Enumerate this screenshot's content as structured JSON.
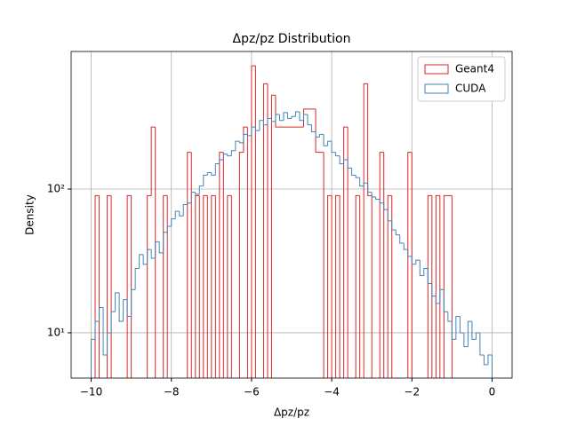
{
  "chart_data": {
    "type": "histogram",
    "title": "Δpz/pz Distribution",
    "x_label": "Δpz/pz",
    "y_label": "Density",
    "log_y": true,
    "grid": true,
    "legend_position": "upper right",
    "xlim": [
      -10.5,
      0.5
    ],
    "ylim": [
      4.84,
      906
    ],
    "xticks": [
      {
        "value": -10,
        "label": "−10"
      },
      {
        "value": -8,
        "label": "−8"
      },
      {
        "value": -6,
        "label": "−6"
      },
      {
        "value": -4,
        "label": "−4"
      },
      {
        "value": -2,
        "label": "−2"
      },
      0
    ],
    "yticks": [
      {
        "value": 10,
        "label": "10¹"
      },
      {
        "value": 100,
        "label": "10²"
      }
    ],
    "bins": [
      -10,
      -9.9,
      -9.8,
      -9.7,
      -9.6,
      -9.5,
      -9.4,
      -9.3,
      -9.2,
      -9.1,
      -9,
      -8.9,
      -8.8,
      -8.7,
      -8.6,
      -8.5,
      -8.4,
      -8.3,
      -8.2,
      -8.1,
      -8,
      -7.9,
      -7.8,
      -7.7,
      -7.6,
      -7.5,
      -7.4,
      -7.3,
      -7.2,
      -7.1,
      -7,
      -6.9,
      -6.8,
      -6.7,
      -6.6,
      -6.5,
      -6.4,
      -6.3,
      -6.2,
      -6.1,
      -6,
      -5.9,
      -5.8,
      -5.7,
      -5.6,
      -5.5,
      -5.4,
      -5.3,
      -5.2,
      -5.1,
      -5,
      -4.9,
      -4.8,
      -4.7,
      -4.6,
      -4.5,
      -4.4,
      -4.3,
      -4.2,
      -4.1,
      -4,
      -3.9,
      -3.8,
      -3.7,
      -3.6,
      -3.5,
      -3.4,
      -3.3,
      -3.2,
      -3.1,
      -3,
      -2.9,
      -2.8,
      -2.7,
      -2.6,
      -2.5,
      -2.4,
      -2.3,
      -2.2,
      -2.1,
      -2,
      -1.9,
      -1.8,
      -1.7,
      -1.6,
      -1.5,
      -1.4,
      -1.3,
      -1.2,
      -1.1,
      -1,
      -0.9,
      -0.8,
      -0.7,
      -0.6,
      -0.5,
      -0.4,
      -0.3,
      -0.2,
      -0.1,
      0
    ],
    "series": [
      {
        "name": "Geant4",
        "color": "#d62728",
        "values": [
          0,
          90,
          0,
          0,
          90,
          0,
          0,
          0,
          0,
          90,
          0,
          0,
          0,
          0,
          90,
          270,
          0,
          0,
          90,
          0,
          0,
          0,
          0,
          0,
          180,
          0,
          90,
          0,
          90,
          0,
          90,
          0,
          180,
          0,
          90,
          0,
          0,
          180,
          270,
          0,
          720,
          0,
          0,
          540,
          0,
          450,
          270,
          270,
          270,
          270,
          270,
          270,
          270,
          360,
          360,
          360,
          180,
          180,
          0,
          90,
          0,
          90,
          0,
          270,
          0,
          0,
          90,
          0,
          540,
          90,
          0,
          0,
          180,
          0,
          90,
          0,
          0,
          0,
          0,
          180,
          0,
          0,
          0,
          0,
          90,
          0,
          90,
          0,
          90,
          90,
          0,
          0,
          0,
          0,
          0,
          0,
          0,
          0,
          0,
          0
        ]
      },
      {
        "name": "CUDA",
        "color": "#4682b4",
        "values": [
          9,
          12,
          15,
          7,
          10,
          14,
          19,
          12,
          17,
          13,
          20,
          28,
          35,
          30,
          38,
          33,
          43,
          36,
          50,
          55,
          62,
          70,
          65,
          78,
          80,
          95,
          92,
          105,
          125,
          130,
          125,
          150,
          160,
          175,
          170,
          185,
          215,
          210,
          240,
          235,
          270,
          255,
          300,
          280,
          310,
          295,
          330,
          300,
          340,
          310,
          320,
          345,
          300,
          330,
          280,
          250,
          230,
          240,
          200,
          215,
          180,
          170,
          150,
          160,
          140,
          125,
          120,
          105,
          110,
          95,
          88,
          85,
          80,
          72,
          60,
          52,
          48,
          42,
          38,
          34,
          30,
          32,
          25,
          28,
          22,
          18,
          16,
          20,
          14,
          12,
          9,
          13,
          10,
          8,
          12,
          9,
          10,
          7,
          6,
          7
        ]
      }
    ]
  }
}
